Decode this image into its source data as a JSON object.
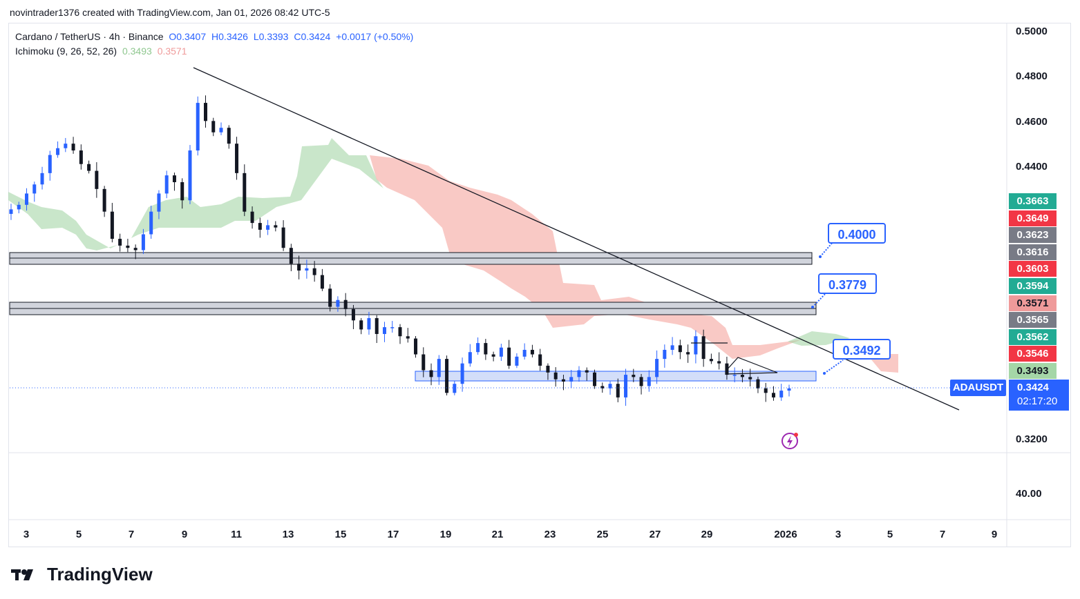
{
  "header": {
    "attribution": "novintrader1376 created with TradingView.com, Jan 01, 2026 08:42 UTC-5"
  },
  "legend": {
    "symbol": "Cardano / TetherUS · 4h · Binance",
    "open": "O0.3407",
    "high": "H0.3426",
    "low": "L0.3393",
    "close": "C0.3424",
    "change": "+0.0017 (+0.50%)",
    "indicator": "Ichimoku (9, 26, 52, 26)",
    "ind_val1": "0.3493",
    "ind_val2": "0.3571"
  },
  "price_tags": [
    {
      "label": "0.3663",
      "color": "#22ab94"
    },
    {
      "label": "0.3649",
      "color": "#f23645"
    },
    {
      "label": "0.3623",
      "color": "#787b86"
    },
    {
      "label": "0.3616",
      "color": "#787b86"
    },
    {
      "label": "0.3603",
      "color": "#f23645"
    },
    {
      "label": "0.3594",
      "color": "#22ab94"
    },
    {
      "label": "0.3571",
      "color": "#ef9a9a"
    },
    {
      "label": "0.3565",
      "color": "#787b86"
    },
    {
      "label": "0.3562",
      "color": "#22ab94"
    },
    {
      "label": "0.3546",
      "color": "#f23645"
    },
    {
      "label": "0.3493",
      "color": "#a5d6a7"
    }
  ],
  "current": {
    "symbol": "ADAUSDT",
    "price": "0.3424",
    "countdown": "02:17:20"
  },
  "callouts": {
    "top": "0.4000",
    "mid": "0.3779",
    "low": "0.3492"
  },
  "branding": {
    "name": "TradingView"
  },
  "chart_data": {
    "type": "candlestick",
    "title": "Cardano / TetherUS · 4h · Binance",
    "y_axis_ticks": [
      "0.5000",
      "0.4800",
      "0.4600",
      "0.4400",
      "0.3200"
    ],
    "y_range": [
      0.3133,
      0.5
    ],
    "lower_pane_tick": "40.00",
    "x_ticks": [
      "3",
      "5",
      "7",
      "9",
      "11",
      "13",
      "15",
      "17",
      "19",
      "21",
      "23",
      "25",
      "27",
      "29",
      "2026",
      "3",
      "5",
      "7",
      "9"
    ],
    "close_path": [
      0.421,
      0.423,
      0.428,
      0.432,
      0.437,
      0.445,
      0.448,
      0.45,
      0.447,
      0.441,
      0.438,
      0.43,
      0.42,
      0.408,
      0.405,
      0.404,
      0.403,
      0.41,
      0.42,
      0.428,
      0.436,
      0.433,
      0.425,
      0.447,
      0.468,
      0.46,
      0.455,
      0.457,
      0.45,
      0.437,
      0.42,
      0.415,
      0.412,
      0.414,
      0.413,
      0.404,
      0.397,
      0.394,
      0.395,
      0.392,
      0.386,
      0.378,
      0.381,
      0.377,
      0.372,
      0.368,
      0.373,
      0.366,
      0.369,
      0.369,
      0.365,
      0.364,
      0.357,
      0.35,
      0.347,
      0.355,
      0.34,
      0.344,
      0.353,
      0.358,
      0.362,
      0.357,
      0.356,
      0.36,
      0.352,
      0.356,
      0.359,
      0.357,
      0.352,
      0.349,
      0.346,
      0.345,
      0.347,
      0.35,
      0.349,
      0.343,
      0.342,
      0.344,
      0.338,
      0.348,
      0.347,
      0.343,
      0.347,
      0.355,
      0.359,
      0.361,
      0.358,
      0.357,
      0.365,
      0.355,
      0.354,
      0.353,
      0.348,
      0.348,
      0.347,
      0.346,
      0.342,
      0.34,
      0.338,
      0.341,
      0.342
    ],
    "annotations": {
      "resistance_zone_1": [
        0.3973,
        0.3918
      ],
      "resistance_zone_2": [
        0.3752,
        0.3697
      ],
      "support_zone": [
        0.3517,
        0.3474
      ],
      "callouts": [
        "0.4000",
        "0.3779",
        "0.3492"
      ]
    }
  }
}
